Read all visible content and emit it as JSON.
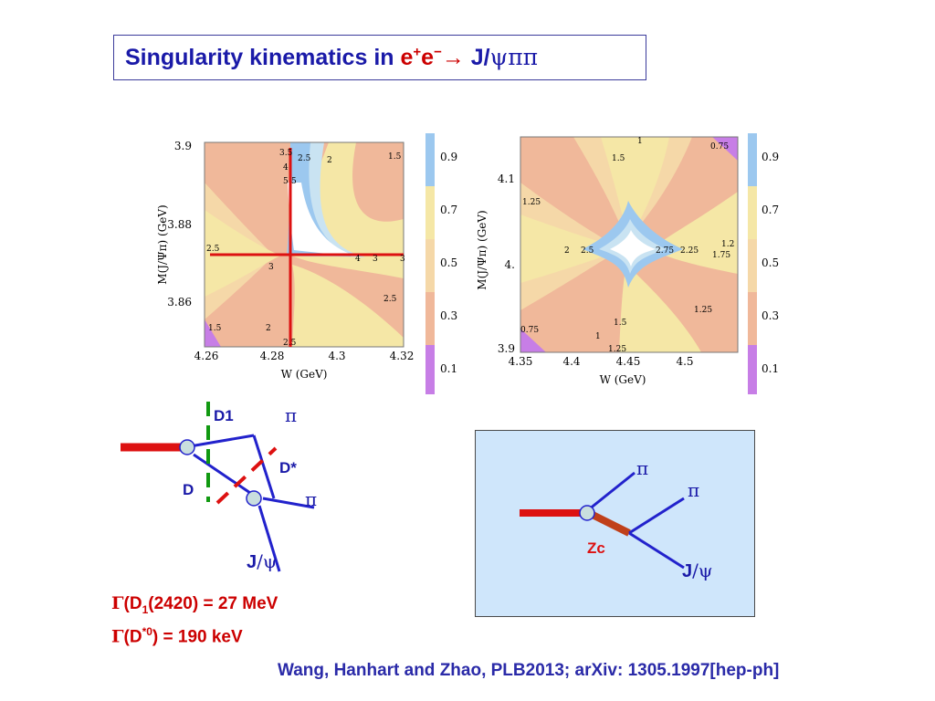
{
  "title": {
    "prefix": "Singularity kinematics in ",
    "e": "e",
    "plus": "+",
    "e2": "e",
    "minus": "−",
    "arrow": "→",
    "product": " J/",
    "greek": "ψππ"
  },
  "plot_left": {
    "y_label": "M(J/Ψπ) (GeV)",
    "x_label": "W (GeV)",
    "y_ticks": [
      "3.9",
      "3.88",
      "3.86"
    ],
    "x_ticks": [
      "4.26",
      "4.28",
      "4.3",
      "4.32"
    ],
    "contour_labels": [
      "3.5",
      "4",
      "5",
      "5",
      "2.5",
      "2",
      "1.5",
      "2.5",
      "3",
      "3",
      "4",
      "3",
      "2.5",
      "1.5",
      "2",
      "2.5"
    ],
    "colorbar_ticks": [
      "0.9",
      "0.7",
      "0.5",
      "0.3",
      "0.1"
    ]
  },
  "plot_right": {
    "y_label": "M(J/Ψπ) (GeV)",
    "x_label": "W (GeV)",
    "y_ticks": [
      "4.1",
      "4.",
      "3.9"
    ],
    "x_ticks": [
      "4.35",
      "4.4",
      "4.45",
      "4.5"
    ],
    "contour_labels": [
      "1",
      "0.75",
      "1.5",
      "1.25",
      "2",
      "2.5",
      "2.75",
      "2.25",
      "1.2",
      "1.75",
      "1.25",
      "1.5",
      "1",
      "0.75",
      "1.25"
    ],
    "colorbar_ticks": [
      "0.9",
      "0.7",
      "0.5",
      "0.3",
      "0.1"
    ]
  },
  "triangle_diagram": {
    "d1": "D1",
    "d_star": "D*",
    "d": "D",
    "pi_top": "π",
    "pi_mid": "π",
    "jpsi_j": "J",
    "jpsi_rest": "/ψ"
  },
  "zc_diagram": {
    "pi_1": "π",
    "pi_2": "π",
    "zc": "Zc",
    "jpsi_j": "J",
    "jpsi_rest": "/ψ"
  },
  "widths": {
    "line1": {
      "gamma": "Γ",
      "text": "(D",
      "sub": "1",
      "rest": "(2420) = 27 MeV"
    },
    "line2": {
      "gamma": "Γ",
      "text": "(D",
      "sup": "*0",
      "rest": ") = 190 keV"
    }
  },
  "citation": "Wang, Hanhart and Zhao, PLB2013; arXiv: 1305.1997[hep-ph]",
  "colors": {
    "title_blue": "#1a1aa8",
    "accent_red": "#cc0000",
    "line_blue": "#2222cc",
    "dash_green": "#119911",
    "zc_box_bg": "#cfe6fb",
    "zc_line": "#c0401a",
    "contour_orange": "#f0b89a",
    "contour_yellow": "#f5e7a6",
    "contour_blue": "#9cc8ef",
    "contour_purple": "#c77ee6"
  }
}
